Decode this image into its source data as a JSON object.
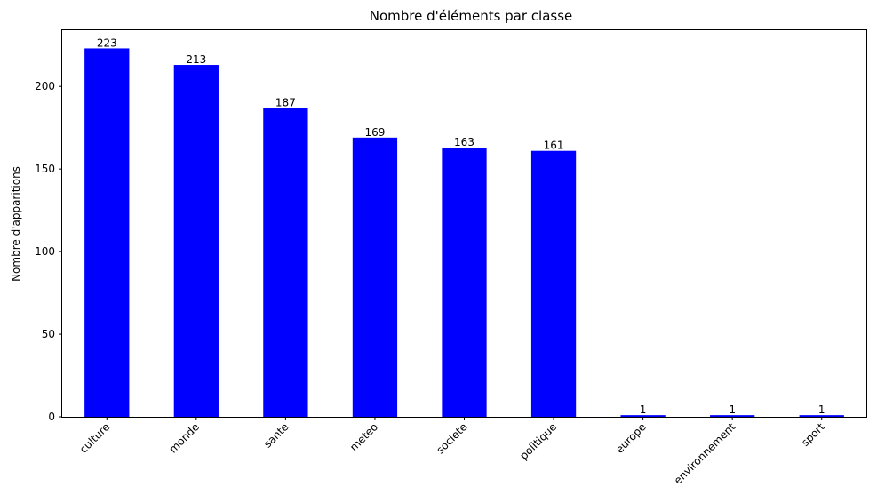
{
  "chart_data": {
    "type": "bar",
    "title": "Nombre d'éléments par classe",
    "xlabel": "",
    "ylabel": "Nombre d'apparitions",
    "categories": [
      "culture",
      "monde",
      "sante",
      "meteo",
      "societe",
      "politique",
      "europe",
      "environnement",
      "sport"
    ],
    "values": [
      223,
      213,
      187,
      169,
      163,
      161,
      1,
      1,
      1
    ],
    "ylim": [
      0,
      234
    ],
    "yticks": [
      0,
      50,
      100,
      150,
      200
    ],
    "bar_color": "#0000ff",
    "grid": false,
    "legend": "none",
    "xtick_rotation": 45
  }
}
